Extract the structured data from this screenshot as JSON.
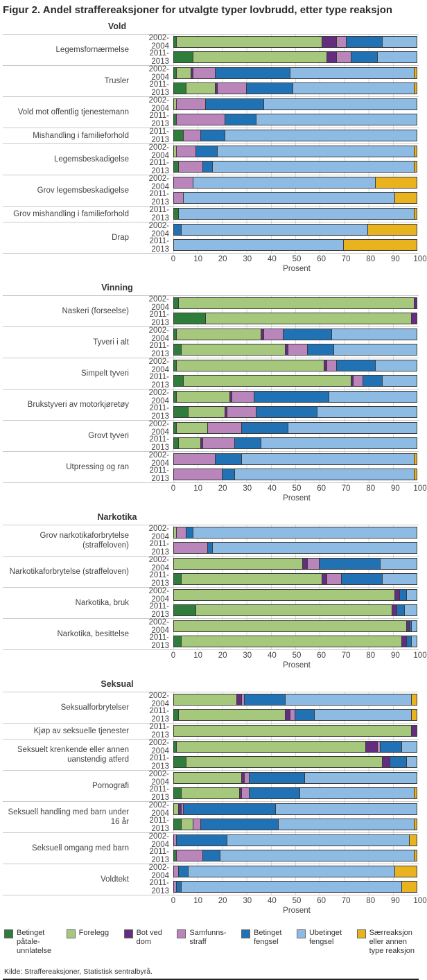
{
  "title": "Figur 2. Andel straffereaksjoner for utvalgte typer lovbrudd, etter type reaksjon",
  "source": "Kilde: Straffereaksjoner, Statistisk sentralbyrå.",
  "legend": [
    {
      "name": "Betinget påtaleunnlatelse",
      "display": "Betinget\npåtale-\nunnlatelse",
      "color": "#2f7d3b"
    },
    {
      "name": "Forelegg",
      "display": "Forelegg",
      "color": "#a5c87d"
    },
    {
      "name": "Bot ved dom",
      "display": "Bot ved\ndom",
      "color": "#652d80"
    },
    {
      "name": "Samfunnsstraff",
      "display": "Samfunns-\nstraff",
      "color": "#ba85ba"
    },
    {
      "name": "Betinget fengsel",
      "display": "Betinget\nfengsel",
      "color": "#2171b5"
    },
    {
      "name": "Ubetinget fengsel",
      "display": "Ubetinget\nfengsel",
      "color": "#8ebbe3"
    },
    {
      "name": "Særreaksjon eller annen type reaksjon",
      "display": "Særreaksjon\neller annen\ntype reaksjon",
      "color": "#e9b320"
    }
  ],
  "chart_data": {
    "type": "bar",
    "stacked": true,
    "orientation": "horizontal",
    "unit": "percent",
    "xlabel": "Prosent",
    "xlim": [
      0,
      100
    ],
    "xticks": [
      0,
      10,
      20,
      30,
      40,
      50,
      60,
      70,
      80,
      90,
      100
    ],
    "grid": true,
    "series_names": [
      "Betinget påtaleunnlatelse",
      "Forelegg",
      "Bot ved dom",
      "Samfunnsstraff",
      "Betinget fengsel",
      "Ubetinget fengsel",
      "Særreaksjon eller annen type reaksjon"
    ],
    "series_keys": [
      "betinget-pataleunnlatelse",
      "forelegg",
      "bot-ved-dom",
      "samfunnsstraff",
      "betinget-fengsel",
      "ubetinget-fengsel",
      "saerreaksjon"
    ],
    "panels": [
      {
        "title": "Vold",
        "rows": [
          {
            "category": "Legemsfornærmelse",
            "period": "2002-2004",
            "values": [
              1,
              60,
              6,
              4,
              15,
              14,
              0
            ]
          },
          {
            "category": "Legemsfornærmelse",
            "period": "2011-2013",
            "values": [
              8,
              55,
              4,
              6,
              11,
              16,
              0
            ]
          },
          {
            "category": "Trusler",
            "period": "2002-2004",
            "values": [
              1,
              6,
              1,
              9,
              31,
              51,
              1
            ]
          },
          {
            "category": "Trusler",
            "period": "2011-2013",
            "values": [
              5,
              12,
              1,
              12,
              19,
              50,
              1
            ]
          },
          {
            "category": "Vold mot offentlig tjenestemann",
            "period": "2002-2004",
            "values": [
              0,
              1,
              0,
              12,
              24,
              63,
              0
            ]
          },
          {
            "category": "Vold mot offentlig tjenestemann",
            "period": "2011-2013",
            "values": [
              1,
              0,
              0,
              20,
              13,
              66,
              0
            ]
          },
          {
            "category": "Mishandling i familieforhold",
            "period": "2011-2013",
            "values": [
              4,
              0,
              0,
              7,
              10,
              79,
              0
            ]
          },
          {
            "category": "Legemsbeskadigelse",
            "period": "2002-2004",
            "values": [
              0,
              1,
              0,
              8,
              9,
              81,
              1
            ]
          },
          {
            "category": "Legemsbeskadigelse",
            "period": "2011-2013",
            "values": [
              2,
              0,
              0,
              10,
              4,
              83,
              1
            ]
          },
          {
            "category": "Grov legemsbeskadigelse",
            "period": "2002-2004",
            "values": [
              0,
              0,
              0,
              8,
              0,
              75,
              17
            ]
          },
          {
            "category": "Grov legemsbeskadigelse",
            "period": "2011-2013",
            "values": [
              0,
              0,
              0,
              4,
              0,
              87,
              9
            ]
          },
          {
            "category": "Grov mishandling i familieforhold",
            "period": "2011-2013",
            "values": [
              2,
              0,
              0,
              0,
              0,
              97,
              1
            ]
          },
          {
            "category": "Drap",
            "period": "2002-2004",
            "values": [
              0,
              0,
              0,
              0,
              3,
              77,
              20
            ]
          },
          {
            "category": "Drap",
            "period": "2011-2013",
            "values": [
              0,
              0,
              0,
              0,
              0,
              70,
              30
            ]
          }
        ]
      },
      {
        "title": "Vinning",
        "rows": [
          {
            "category": "Naskeri (forseelse)",
            "period": "2002-2004",
            "values": [
              2,
              97,
              1,
              0,
              0,
              0,
              0
            ]
          },
          {
            "category": "Naskeri (forseelse)",
            "period": "2011-2013",
            "values": [
              13,
              85,
              2,
              0,
              0,
              0,
              0
            ]
          },
          {
            "category": "Tyveri i alt",
            "period": "2002-2004",
            "values": [
              1,
              35,
              1,
              8,
              20,
              35,
              0
            ]
          },
          {
            "category": "Tyveri i alt",
            "period": "2011-2013",
            "values": [
              3,
              43,
              1,
              8,
              11,
              34,
              0
            ]
          },
          {
            "category": "Simpelt tyveri",
            "period": "2002-2004",
            "values": [
              1,
              61,
              1,
              4,
              16,
              17,
              0
            ]
          },
          {
            "category": "Simpelt tyveri",
            "period": "2011-2013",
            "values": [
              4,
              69,
              1,
              4,
              8,
              14,
              0
            ]
          },
          {
            "category": "Brukstyveri av motorkjøretøy",
            "period": "2002-2004",
            "values": [
              1,
              22,
              1,
              9,
              31,
              36,
              0
            ]
          },
          {
            "category": "Brukstyveri av motorkjøretøy",
            "period": "2011-2013",
            "values": [
              6,
              15,
              1,
              12,
              25,
              41,
              0
            ]
          },
          {
            "category": "Grovt tyveri",
            "period": "2002-2004",
            "values": [
              1,
              13,
              0,
              14,
              19,
              53,
              0
            ]
          },
          {
            "category": "Grovt tyveri",
            "period": "2011-2013",
            "values": [
              2,
              9,
              1,
              13,
              11,
              64,
              0
            ]
          },
          {
            "category": "Utpressing og ran",
            "period": "2002-2004",
            "values": [
              0,
              0,
              0,
              17,
              11,
              71,
              1
            ]
          },
          {
            "category": "Utpressing og ran",
            "period": "2011-2013",
            "values": [
              0,
              0,
              0,
              20,
              5,
              74,
              1
            ]
          }
        ]
      },
      {
        "title": "Narkotika",
        "rows": [
          {
            "category": "Grov narkotikaforbrytelse (straffeloven)",
            "period": "2002-2004",
            "values": [
              0,
              1,
              0,
              4,
              3,
              92,
              0
            ]
          },
          {
            "category": "Grov narkotikaforbrytelse (straffeloven)",
            "period": "2011-2013",
            "values": [
              0,
              0,
              0,
              14,
              2,
              84,
              0
            ]
          },
          {
            "category": "Narkotikaforbrytelse (straffeloven)",
            "period": "2002-2004",
            "values": [
              0,
              53,
              2,
              5,
              25,
              15,
              0
            ]
          },
          {
            "category": "Narkotikaforbrytelse (straffeloven)",
            "period": "2011-2013",
            "values": [
              3,
              58,
              2,
              6,
              17,
              14,
              0
            ]
          },
          {
            "category": "Narkotika, bruk",
            "period": "2002-2004",
            "values": [
              0,
              91,
              2,
              0,
              3,
              4,
              0
            ]
          },
          {
            "category": "Narkotika, bruk",
            "period": "2011-2013",
            "values": [
              9,
              81,
              2,
              0,
              3,
              5,
              0
            ]
          },
          {
            "category": "Narkotika, besittelse",
            "period": "2002-2004",
            "values": [
              0,
              96,
              1,
              0,
              1,
              2,
              0
            ]
          },
          {
            "category": "Narkotika, besittelse",
            "period": "2011-2013",
            "values": [
              3,
              91,
              2,
              0,
              2,
              2,
              0
            ]
          }
        ]
      },
      {
        "title": "Seksual",
        "rows": [
          {
            "category": "Seksualforbrytelser",
            "period": "2002-2004",
            "values": [
              0,
              26,
              2,
              1,
              17,
              52,
              2
            ]
          },
          {
            "category": "Seksualforbrytelser",
            "period": "2011-2013",
            "values": [
              2,
              44,
              2,
              2,
              8,
              40,
              2
            ]
          },
          {
            "category": "Kjøp av seksuelle tjenester",
            "period": "2011-2013",
            "values": [
              0,
              98,
              2,
              0,
              0,
              0,
              0
            ]
          },
          {
            "category": "Seksuelt krenkende eller annen uanstendig atferd",
            "period": "2002-2004",
            "values": [
              1,
              78,
              5,
              1,
              9,
              6,
              0
            ]
          },
          {
            "category": "Seksuelt krenkende eller annen uanstendig atferd",
            "period": "2011-2013",
            "values": [
              5,
              81,
              3,
              0,
              7,
              4,
              0
            ]
          },
          {
            "category": "Pornografi",
            "period": "2002-2004",
            "values": [
              0,
              28,
              1,
              2,
              23,
              46,
              0
            ]
          },
          {
            "category": "Pornografi",
            "period": "2011-2013",
            "values": [
              3,
              24,
              1,
              3,
              21,
              47,
              1
            ]
          },
          {
            "category": "Seksuell handling med barn under 16 år",
            "period": "2002-2004",
            "values": [
              0,
              2,
              1,
              1,
              38,
              58,
              0
            ]
          },
          {
            "category": "Seksuell handling med barn under 16 år",
            "period": "2011-2013",
            "values": [
              3,
              5,
              0,
              3,
              32,
              56,
              1
            ]
          },
          {
            "category": "Seksuell omgang med barn",
            "period": "2002-2004",
            "values": [
              0,
              0,
              0,
              1,
              21,
              75,
              3
            ]
          },
          {
            "category": "Seksuell omgang med barn",
            "period": "2011-2013",
            "values": [
              1,
              0,
              0,
              11,
              7,
              80,
              1
            ]
          },
          {
            "category": "Voldtekt",
            "period": "2002-2004",
            "values": [
              0,
              0,
              0,
              2,
              4,
              85,
              9
            ]
          },
          {
            "category": "Voldtekt",
            "period": "2011-2013",
            "values": [
              0,
              0,
              0,
              1,
              2,
              91,
              6
            ]
          }
        ]
      }
    ]
  }
}
